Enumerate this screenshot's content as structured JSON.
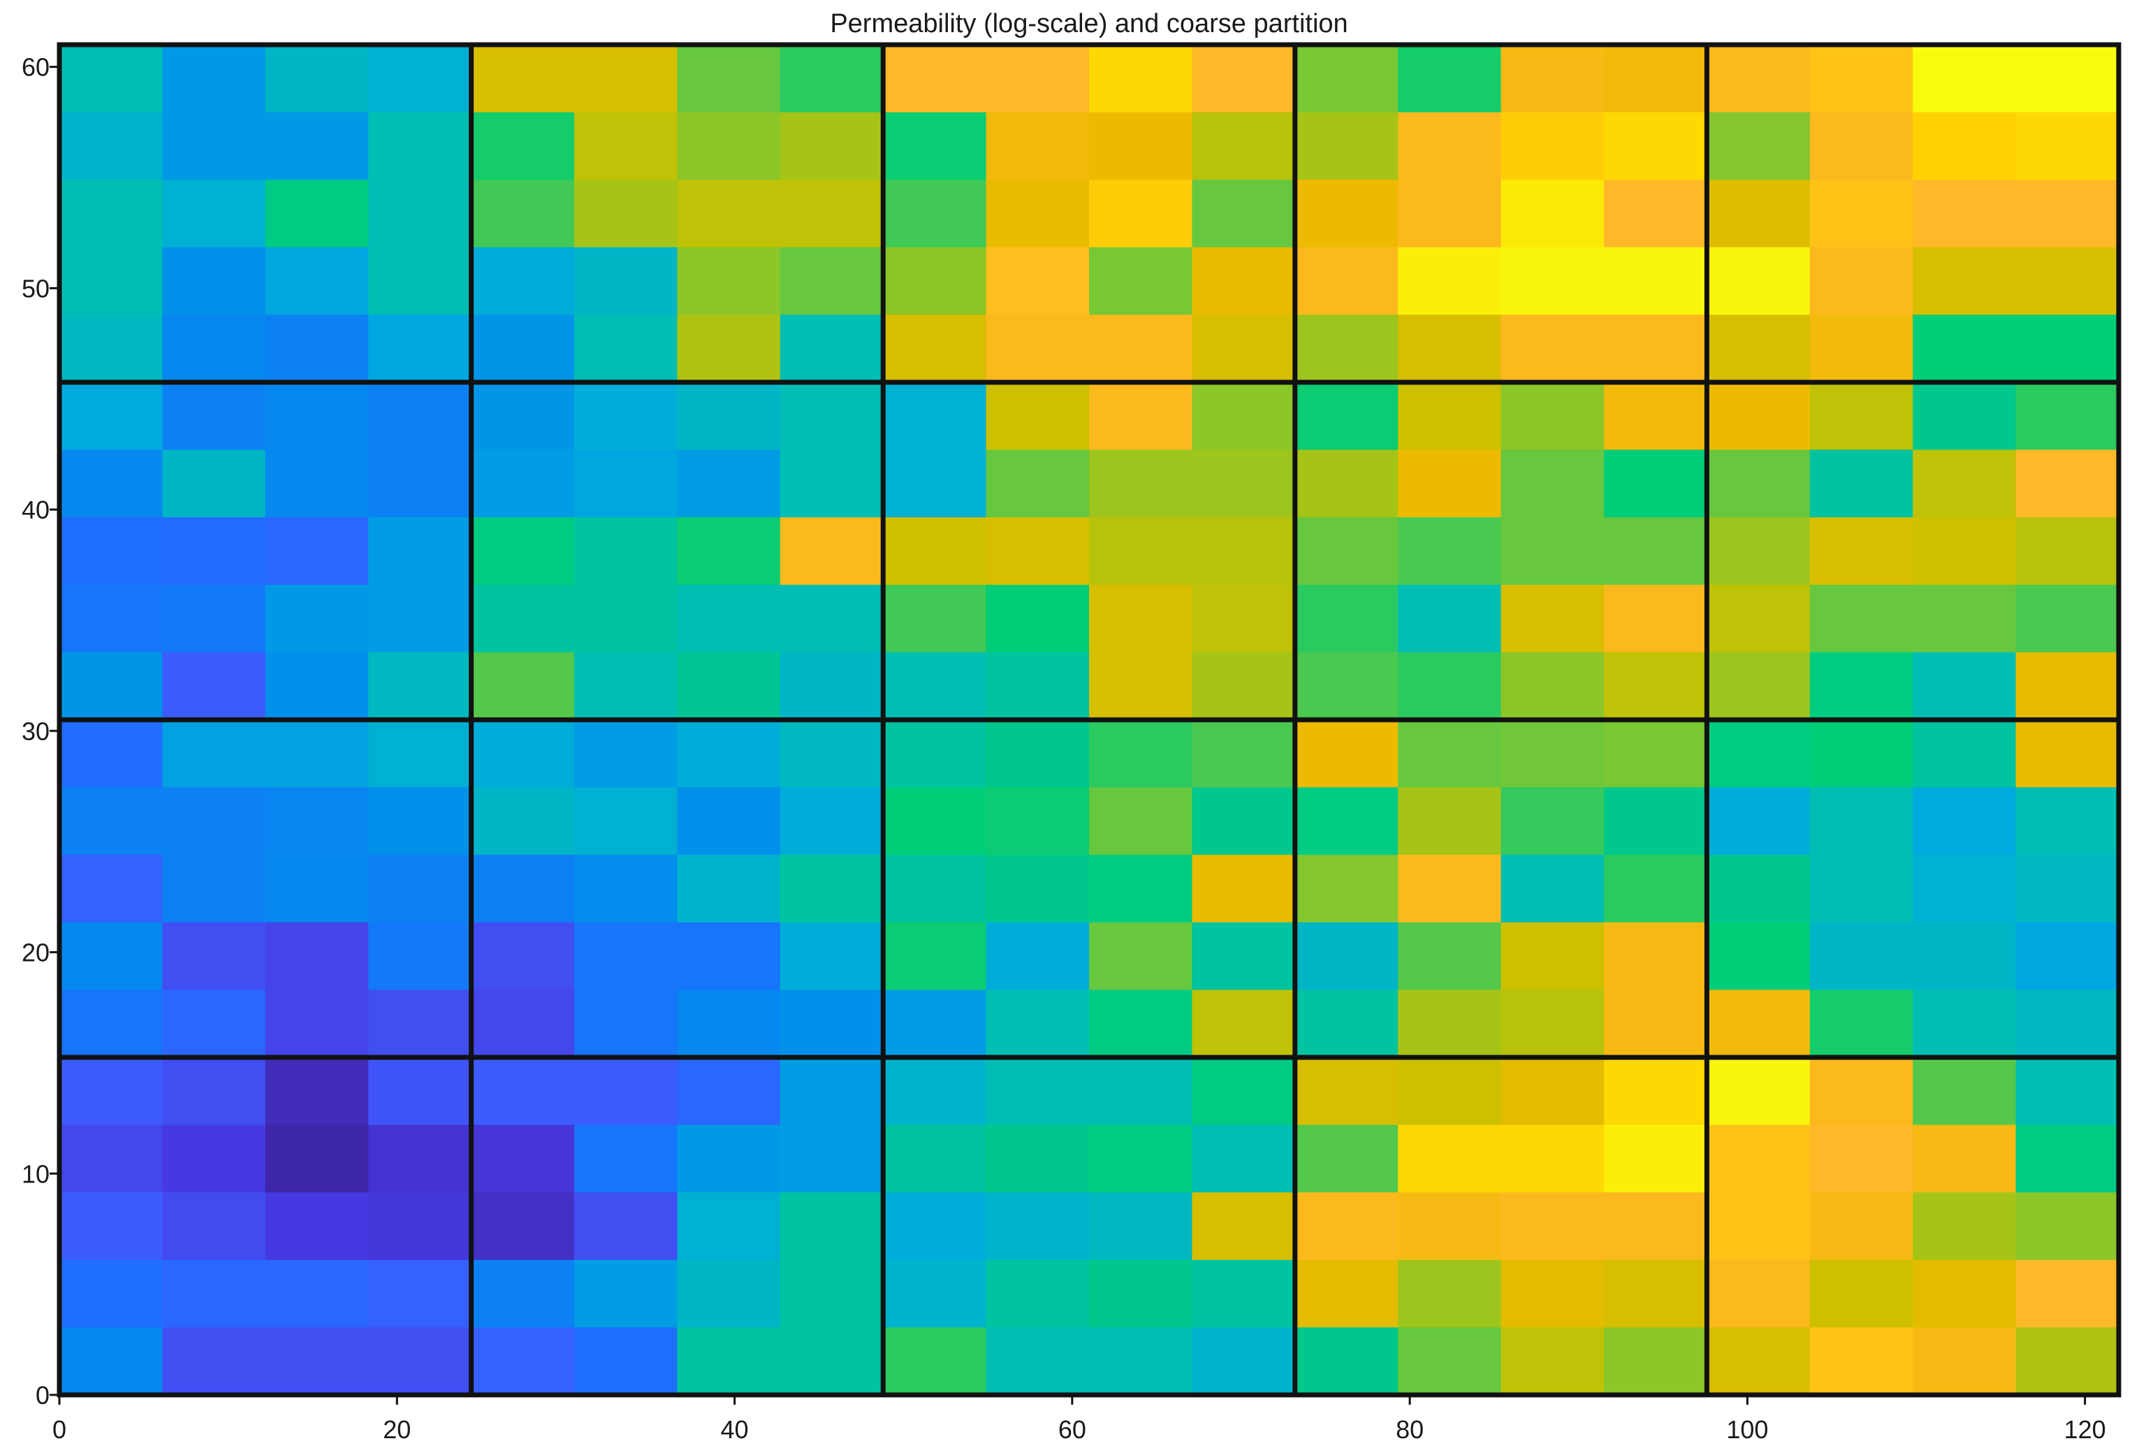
{
  "chart_data": {
    "type": "heatmap",
    "title": "Permeability (log-scale) and coarse partition",
    "xlabel": "",
    "ylabel": "",
    "colormap": "parula",
    "xlim": [
      0,
      122
    ],
    "ylim": [
      0,
      61
    ],
    "x_ticks": [
      0,
      20,
      40,
      60,
      80,
      100,
      120
    ],
    "y_ticks": [
      0,
      10,
      20,
      30,
      40,
      50,
      60
    ],
    "x_tick_labels": [
      "0",
      "20",
      "40",
      "60",
      "80",
      "100",
      "120"
    ],
    "y_tick_labels": [
      "0",
      "10",
      "20",
      "30",
      "40",
      "50",
      "60"
    ],
    "fine_grid": {
      "nx": 20,
      "ny": 20
    },
    "coarse_partition": {
      "nx": 5,
      "ny": 4
    },
    "grid": false,
    "colorbar": false,
    "value_note": "cell values are relative colormap levels 0 (dark blue) to 1 (yellow), rows listed from top (y=61) to bottom (y=0)",
    "values": [
      [
        0.5,
        0.39,
        0.47,
        0.45,
        0.8,
        0.8,
        0.66,
        0.6,
        0.88,
        0.88,
        0.94,
        0.88,
        0.68,
        0.58,
        0.86,
        0.85,
        0.87,
        0.9,
        1.0,
        1.0
      ],
      [
        0.46,
        0.39,
        0.39,
        0.5,
        0.58,
        0.76,
        0.7,
        0.73,
        0.57,
        0.85,
        0.84,
        0.75,
        0.73,
        0.87,
        0.92,
        0.94,
        0.69,
        0.87,
        0.93,
        0.94
      ],
      [
        0.5,
        0.45,
        0.55,
        0.5,
        0.62,
        0.73,
        0.76,
        0.76,
        0.62,
        0.83,
        0.92,
        0.66,
        0.84,
        0.87,
        0.97,
        0.88,
        0.81,
        0.9,
        0.88,
        0.88
      ],
      [
        0.5,
        0.37,
        0.42,
        0.5,
        0.44,
        0.47,
        0.7,
        0.66,
        0.7,
        0.89,
        0.68,
        0.83,
        0.87,
        0.98,
        0.99,
        0.99,
        0.99,
        0.87,
        0.8,
        0.8
      ],
      [
        0.48,
        0.35,
        0.33,
        0.42,
        0.38,
        0.5,
        0.74,
        0.5,
        0.8,
        0.87,
        0.87,
        0.8,
        0.72,
        0.8,
        0.87,
        0.87,
        0.8,
        0.85,
        0.56,
        0.56
      ],
      [
        0.43,
        0.33,
        0.35,
        0.33,
        0.38,
        0.44,
        0.47,
        0.5,
        0.45,
        0.78,
        0.87,
        0.7,
        0.57,
        0.78,
        0.7,
        0.85,
        0.84,
        0.76,
        0.54,
        0.6
      ],
      [
        0.35,
        0.47,
        0.35,
        0.33,
        0.4,
        0.42,
        0.4,
        0.5,
        0.45,
        0.66,
        0.72,
        0.72,
        0.73,
        0.84,
        0.66,
        0.56,
        0.66,
        0.52,
        0.76,
        0.88
      ],
      [
        0.28,
        0.27,
        0.25,
        0.4,
        0.55,
        0.52,
        0.57,
        0.87,
        0.78,
        0.8,
        0.75,
        0.75,
        0.66,
        0.63,
        0.66,
        0.66,
        0.72,
        0.8,
        0.78,
        0.75
      ],
      [
        0.3,
        0.31,
        0.39,
        0.4,
        0.52,
        0.52,
        0.5,
        0.5,
        0.62,
        0.56,
        0.8,
        0.76,
        0.6,
        0.5,
        0.8,
        0.87,
        0.76,
        0.66,
        0.66,
        0.63
      ],
      [
        0.38,
        0.2,
        0.37,
        0.48,
        0.64,
        0.5,
        0.53,
        0.47,
        0.5,
        0.52,
        0.8,
        0.73,
        0.63,
        0.6,
        0.7,
        0.76,
        0.72,
        0.55,
        0.5,
        0.83
      ],
      [
        0.27,
        0.41,
        0.41,
        0.45,
        0.44,
        0.4,
        0.44,
        0.48,
        0.52,
        0.54,
        0.6,
        0.63,
        0.84,
        0.66,
        0.67,
        0.68,
        0.55,
        0.56,
        0.52,
        0.83
      ],
      [
        0.33,
        0.33,
        0.34,
        0.37,
        0.47,
        0.45,
        0.37,
        0.44,
        0.56,
        0.57,
        0.66,
        0.54,
        0.55,
        0.73,
        0.61,
        0.54,
        0.44,
        0.5,
        0.43,
        0.5
      ],
      [
        0.22,
        0.33,
        0.35,
        0.33,
        0.33,
        0.36,
        0.46,
        0.52,
        0.52,
        0.54,
        0.55,
        0.83,
        0.69,
        0.87,
        0.5,
        0.6,
        0.54,
        0.5,
        0.45,
        0.48
      ],
      [
        0.35,
        0.16,
        0.13,
        0.31,
        0.16,
        0.3,
        0.3,
        0.44,
        0.57,
        0.44,
        0.66,
        0.52,
        0.47,
        0.64,
        0.78,
        0.86,
        0.56,
        0.47,
        0.47,
        0.42
      ],
      [
        0.3,
        0.25,
        0.13,
        0.16,
        0.14,
        0.3,
        0.35,
        0.37,
        0.4,
        0.5,
        0.55,
        0.76,
        0.52,
        0.73,
        0.75,
        0.86,
        0.85,
        0.58,
        0.5,
        0.48
      ],
      [
        0.2,
        0.16,
        0.03,
        0.18,
        0.2,
        0.2,
        0.25,
        0.4,
        0.46,
        0.5,
        0.5,
        0.55,
        0.8,
        0.78,
        0.82,
        0.94,
        0.99,
        0.87,
        0.64,
        0.5
      ],
      [
        0.14,
        0.1,
        0.0,
        0.07,
        0.08,
        0.3,
        0.39,
        0.4,
        0.52,
        0.54,
        0.55,
        0.5,
        0.64,
        0.94,
        0.94,
        0.98,
        0.9,
        0.88,
        0.86,
        0.55
      ],
      [
        0.2,
        0.15,
        0.1,
        0.09,
        0.05,
        0.16,
        0.45,
        0.52,
        0.44,
        0.46,
        0.48,
        0.8,
        0.87,
        0.86,
        0.87,
        0.87,
        0.9,
        0.86,
        0.73,
        0.7
      ],
      [
        0.28,
        0.25,
        0.25,
        0.22,
        0.33,
        0.4,
        0.47,
        0.52,
        0.46,
        0.52,
        0.54,
        0.52,
        0.82,
        0.72,
        0.82,
        0.8,
        0.87,
        0.78,
        0.82,
        0.88
      ],
      [
        0.35,
        0.16,
        0.16,
        0.16,
        0.22,
        0.28,
        0.52,
        0.52,
        0.6,
        0.5,
        0.5,
        0.46,
        0.54,
        0.66,
        0.76,
        0.7,
        0.8,
        0.9,
        0.86,
        0.74
      ]
    ]
  }
}
